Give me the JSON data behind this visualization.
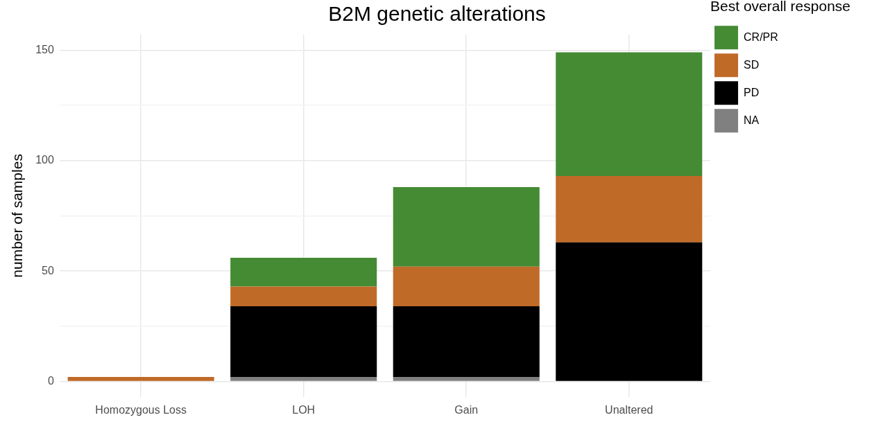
{
  "chart_data": {
    "type": "bar",
    "title": "B2M genetic alterations",
    "ylabel": "number of samples",
    "legend_title": "Best overall response",
    "categories": [
      "Homozygous Loss",
      "LOH",
      "Gain",
      "Unaltered"
    ],
    "stacked": true,
    "series": [
      {
        "name": "NA",
        "color": "#808080",
        "values": [
          0,
          2,
          2,
          0
        ]
      },
      {
        "name": "PD",
        "color": "#000000",
        "values": [
          0,
          32,
          32,
          63
        ]
      },
      {
        "name": "SD",
        "color": "#c06a28",
        "values": [
          2,
          9,
          18,
          30
        ]
      },
      {
        "name": "CR/PR",
        "color": "#458b34",
        "values": [
          0,
          13,
          36,
          56
        ]
      }
    ],
    "ylim": [
      -7,
      157
    ],
    "yticks": [
      0,
      {
        "value": 25,
        "label": null
      },
      50,
      {
        "value": 75,
        "label": null
      },
      100,
      {
        "value": 125,
        "label": null
      },
      150
    ],
    "grid": true,
    "legend": "right"
  }
}
